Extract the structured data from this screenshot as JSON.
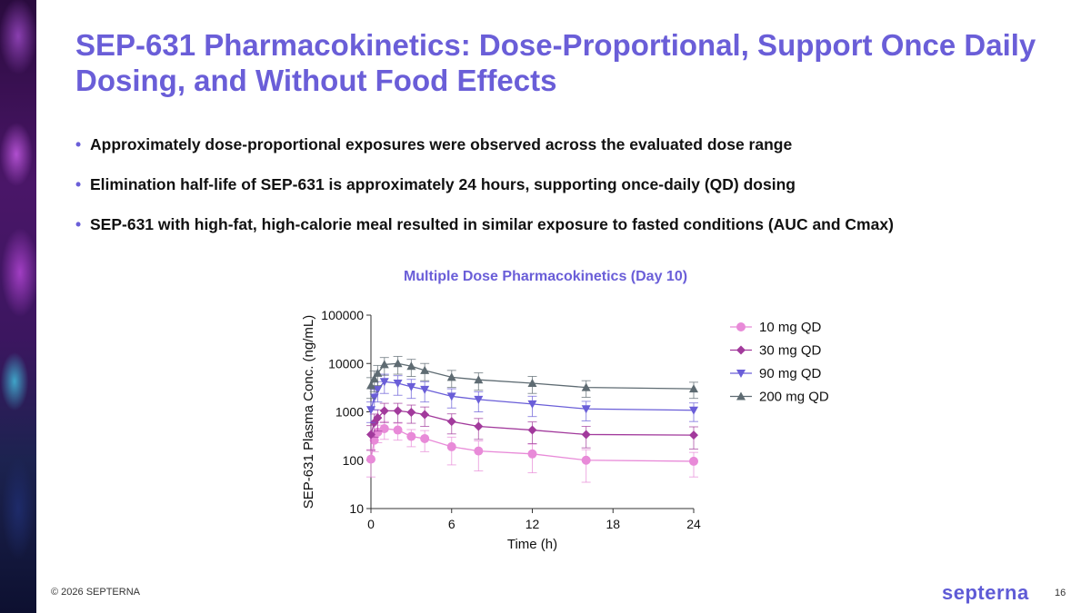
{
  "slide": {
    "title": "SEP-631 Pharmacokinetics: Dose-Proportional, Support Once Daily Dosing, and Without Food Effects",
    "bullet_marker": "•",
    "bullets": [
      "Approximately dose-proportional exposures were observed across the evaluated dose range",
      "Elimination half-life of SEP-631 is approximately 24 hours, supporting once-daily (QD) dosing",
      "SEP-631 with high-fat, high-calorie meal resulted in similar exposure to fasted conditions (AUC and Cmax)"
    ],
    "footer": "© 2026 SEPTERNA",
    "logo_text": "septerna",
    "page_number": "16"
  },
  "chart_data": {
    "type": "line",
    "title": "Multiple Dose Pharmacokinetics (Day 10)",
    "xlabel": "Time (h)",
    "ylabel": "SEP-631 Plasma Conc. (ng/mL)",
    "yscale": "log",
    "xlim": [
      0,
      24
    ],
    "ylim": [
      10,
      100000
    ],
    "x_ticks": [
      0,
      6,
      12,
      18,
      24
    ],
    "y_ticks": [
      10,
      100,
      1000,
      10000,
      100000
    ],
    "legend_position": "right",
    "series": [
      {
        "name": "10 mg QD",
        "color": "#e88ad8",
        "marker": "circle",
        "x": [
          0,
          0.25,
          0.5,
          1,
          2,
          3,
          4,
          6,
          8,
          12,
          16,
          24
        ],
        "y": [
          105,
          260,
          380,
          450,
          420,
          310,
          280,
          190,
          155,
          135,
          100,
          95
        ],
        "err": [
          60,
          110,
          150,
          180,
          160,
          120,
          130,
          110,
          95,
          80,
          65,
          50
        ]
      },
      {
        "name": "30 mg QD",
        "color": "#a23a9c",
        "marker": "diamond",
        "x": [
          0,
          0.25,
          0.5,
          1,
          2,
          3,
          4,
          6,
          8,
          12,
          16,
          24
        ],
        "y": [
          340,
          600,
          750,
          1050,
          1050,
          980,
          880,
          630,
          500,
          420,
          340,
          330
        ],
        "err": [
          180,
          300,
          350,
          450,
          450,
          400,
          380,
          280,
          230,
          200,
          160,
          160
        ]
      },
      {
        "name": "90 mg QD",
        "color": "#6a5ed8",
        "marker": "triangle-down",
        "x": [
          0,
          0.25,
          0.5,
          1,
          2,
          3,
          4,
          6,
          8,
          12,
          16,
          24
        ],
        "y": [
          1100,
          2000,
          2900,
          4200,
          3900,
          3300,
          2900,
          2100,
          1800,
          1450,
          1150,
          1080
        ],
        "err": [
          500,
          900,
          1300,
          1800,
          1700,
          1400,
          1300,
          900,
          800,
          650,
          500,
          450
        ]
      },
      {
        "name": "200 mg QD",
        "color": "#5e6b72",
        "marker": "triangle-up",
        "x": [
          0,
          0.25,
          0.5,
          1,
          2,
          3,
          4,
          6,
          8,
          12,
          16,
          24
        ],
        "y": [
          3500,
          4800,
          6300,
          9500,
          10000,
          8800,
          7200,
          5200,
          4600,
          3900,
          3200,
          3000
        ],
        "err": [
          1600,
          2200,
          2800,
          3800,
          4000,
          3400,
          2800,
          2000,
          1800,
          1500,
          1200,
          1100
        ]
      }
    ]
  }
}
